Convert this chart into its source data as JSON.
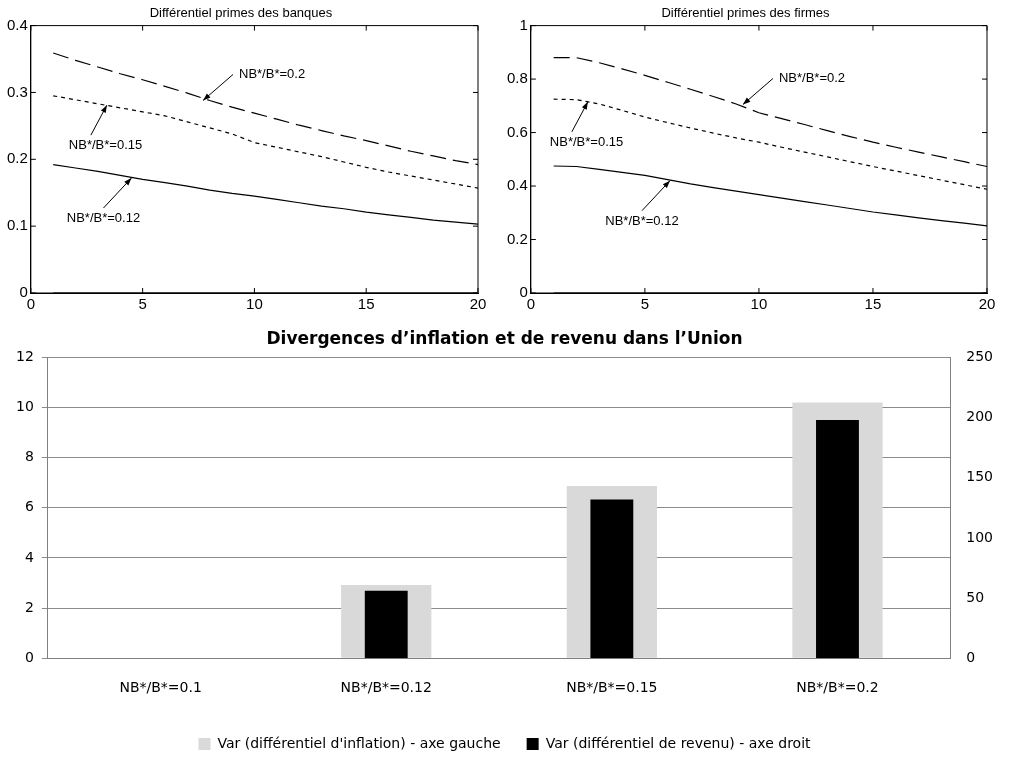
{
  "chart_data": [
    {
      "type": "line",
      "title": "Différentiel primes des banques",
      "x": [
        1,
        2,
        3,
        4,
        5,
        6,
        7,
        8,
        9,
        10,
        11,
        12,
        13,
        14,
        15,
        16,
        17,
        18,
        19,
        20
      ],
      "xlim": [
        0,
        20
      ],
      "xticks": [
        0,
        5,
        10,
        15,
        20
      ],
      "ylim": [
        0,
        0.4
      ],
      "yticks": [
        0,
        0.1,
        0.2,
        0.3,
        0.4
      ],
      "grid": false,
      "legend": false,
      "series": [
        {
          "color": "#000000",
          "line_style": "dashed",
          "values": [
            0.359,
            0.348,
            0.338,
            0.328,
            0.319,
            0.309,
            0.299,
            0.288,
            0.278,
            0.269,
            0.26,
            0.251,
            0.243,
            0.235,
            0.228,
            0.22,
            0.212,
            0.205,
            0.198,
            0.192
          ]
        },
        {
          "color": "#000000",
          "line_style": "dotted",
          "values": [
            0.295,
            0.289,
            0.283,
            0.277,
            0.271,
            0.265,
            0.256,
            0.247,
            0.238,
            0.225,
            0.218,
            0.211,
            0.204,
            0.196,
            0.188,
            0.181,
            0.175,
            0.169,
            0.163,
            0.157
          ]
        },
        {
          "color": "#000000",
          "line_style": "solid",
          "values": [
            0.192,
            0.187,
            0.182,
            0.176,
            0.17,
            0.165,
            0.16,
            0.154,
            0.149,
            0.145,
            0.14,
            0.135,
            0.13,
            0.126,
            0.121,
            0.117,
            0.113,
            0.109,
            0.106,
            0.103
          ]
        },
        {
          "color": "#000000",
          "line_style": "solid",
          "values": [
            0,
            0,
            0,
            0,
            0,
            0,
            0,
            0,
            0,
            0,
            0,
            0,
            0,
            0,
            0,
            0,
            0,
            0,
            0,
            0
          ]
        }
      ],
      "annotations": [
        {
          "text": "NB*/B*=0.2",
          "x": 7.7,
          "y": 0.288
        },
        {
          "text": "NB*/B*=0.15",
          "x": 3.4,
          "y": 0.281
        },
        {
          "text": "NB*/B*=0.12",
          "x": 4.5,
          "y": 0.172
        }
      ]
    },
    {
      "type": "line",
      "title": "Différentiel primes des firmes",
      "x": [
        1,
        2,
        3,
        4,
        5,
        6,
        7,
        8,
        9,
        10,
        11,
        12,
        13,
        14,
        15,
        16,
        17,
        18,
        19,
        20
      ],
      "xlim": [
        0,
        20
      ],
      "xticks": [
        0,
        5,
        10,
        15,
        20
      ],
      "ylim": [
        0,
        1
      ],
      "yticks": [
        0,
        0.2,
        0.4,
        0.6,
        0.8,
        1
      ],
      "grid": false,
      "legend": false,
      "series": [
        {
          "color": "#000000",
          "line_style": "dashed",
          "values": [
            0.88,
            0.88,
            0.861,
            0.838,
            0.814,
            0.788,
            0.762,
            0.735,
            0.707,
            0.674,
            0.652,
            0.63,
            0.607,
            0.585,
            0.564,
            0.545,
            0.527,
            0.509,
            0.491,
            0.473
          ]
        },
        {
          "color": "#000000",
          "line_style": "dotted",
          "values": [
            0.725,
            0.723,
            0.707,
            0.683,
            0.658,
            0.637,
            0.617,
            0.598,
            0.58,
            0.564,
            0.545,
            0.527,
            0.509,
            0.491,
            0.473,
            0.456,
            0.439,
            0.422,
            0.405,
            0.388
          ]
        },
        {
          "color": "#000000",
          "line_style": "solid",
          "values": [
            0.475,
            0.473,
            0.462,
            0.451,
            0.44,
            0.424,
            0.408,
            0.394,
            0.381,
            0.368,
            0.355,
            0.342,
            0.329,
            0.316,
            0.303,
            0.292,
            0.281,
            0.271,
            0.261,
            0.251
          ]
        },
        {
          "color": "#000000",
          "line_style": "solid",
          "values": [
            0,
            0,
            0,
            0,
            0,
            0,
            0,
            0,
            0,
            0,
            0,
            0,
            0,
            0,
            0,
            0,
            0,
            0,
            0,
            0
          ]
        }
      ],
      "annotations": [
        {
          "text": "NB*/B*=0.2",
          "x": 9.3,
          "y": 0.705
        },
        {
          "text": "NB*/B*=0.15",
          "x": 2.5,
          "y": 0.715
        },
        {
          "text": "NB*/B*=0.12",
          "x": 6.1,
          "y": 0.42
        }
      ]
    },
    {
      "type": "bar",
      "title": "Divergences d’inflation et de revenu dans l’Union",
      "categories": [
        "NB*/B*=0.1",
        "NB*/B*=0.12",
        "NB*/B*=0.15",
        "NB*/B*=0.2"
      ],
      "ylim": [
        0,
        12
      ],
      "yticks": [
        0,
        2,
        4,
        6,
        8,
        10,
        12
      ],
      "y2lim": [
        0,
        250
      ],
      "y2ticks": [
        0,
        50,
        100,
        150,
        200,
        250
      ],
      "grid": "y",
      "legend": "bottom",
      "series": [
        {
          "name": "Var (différentiel d'inflation) - axe gauche",
          "color": "#d9d9d9",
          "values": [
            0,
            2.92,
            6.87,
            10.2
          ]
        },
        {
          "name": "Var (différentiel de revenu) - axe droit",
          "color": "#000000",
          "axis": "y2",
          "values": [
            0,
            56,
            132,
            198
          ]
        }
      ]
    }
  ]
}
